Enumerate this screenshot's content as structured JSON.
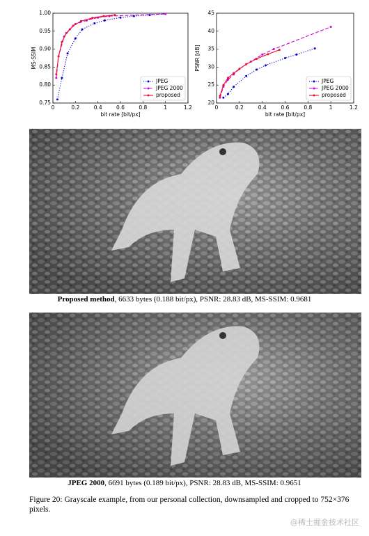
{
  "chart_data": [
    {
      "type": "line",
      "ylabel": "MS-SSIM",
      "xlabel": "bit rate [bit/px]",
      "xlim": [
        0,
        1.2
      ],
      "xticks": [
        0,
        0.2,
        0.4,
        0.6,
        0.8,
        1,
        1.2
      ],
      "ylim": [
        0.75,
        1.0
      ],
      "yticks": [
        0.75,
        {
          "value": 0.8,
          "label": "0.80"
        },
        0.85,
        {
          "value": 0.9,
          "label": "0.90"
        },
        0.95,
        {
          "value": 1.0,
          "label": "1.00"
        }
      ],
      "legend": "lower right",
      "series": [
        {
          "name": "JPEG",
          "color": "#0000cc",
          "linestyle": "dotted",
          "x": [
            0.04,
            0.08,
            0.13,
            0.2,
            0.26,
            0.37,
            0.46,
            0.6,
            0.72,
            0.86,
            1.0
          ],
          "values": [
            0.76,
            0.82,
            0.888,
            0.93,
            0.955,
            0.972,
            0.98,
            0.988,
            0.992,
            0.995,
            0.998
          ]
        },
        {
          "name": "JPEG 2000",
          "color": "#cc00cc",
          "linestyle": "dashed",
          "x": [
            0.03,
            0.05,
            0.1,
            0.15,
            0.2,
            0.3,
            0.4,
            0.5,
            1.0
          ],
          "values": [
            0.82,
            0.88,
            0.935,
            0.955,
            0.97,
            0.98,
            0.988,
            0.992,
            0.998
          ]
        },
        {
          "name": "proposed",
          "color": "#e8102a",
          "linestyle": "solid",
          "x": [
            0.03,
            0.05,
            0.08,
            0.12,
            0.18,
            0.25,
            0.35,
            0.45,
            0.55
          ],
          "values": [
            0.83,
            0.88,
            0.92,
            0.945,
            0.965,
            0.978,
            0.987,
            0.992,
            0.995
          ]
        }
      ]
    },
    {
      "type": "line",
      "ylabel": "PSNR [dB]",
      "xlabel": "bit rate [bit/px]",
      "xlim": [
        0,
        1.2
      ],
      "xticks": [
        0,
        0.2,
        0.4,
        0.6,
        0.8,
        1,
        1.2
      ],
      "ylim": [
        20,
        45
      ],
      "yticks": [
        20,
        25,
        30,
        35,
        40,
        45
      ],
      "legend": "lower right",
      "series": [
        {
          "name": "JPEG",
          "color": "#0000cc",
          "linestyle": "dotted",
          "x": [
            0.06,
            0.1,
            0.15,
            0.26,
            0.35,
            0.43,
            0.6,
            0.7,
            0.86
          ],
          "values": [
            21.5,
            22.5,
            24.5,
            27.5,
            29.3,
            30.5,
            32.5,
            33.5,
            35.2
          ]
        },
        {
          "name": "JPEG 2000",
          "color": "#cc00cc",
          "linestyle": "dashed",
          "x": [
            0.03,
            0.06,
            0.1,
            0.15,
            0.2,
            0.3,
            0.4,
            0.5,
            1.0
          ],
          "values": [
            21.5,
            24.5,
            26.5,
            28,
            29.5,
            31.5,
            33.5,
            35,
            41.2
          ]
        },
        {
          "name": "proposed",
          "color": "#e8102a",
          "linestyle": "solid",
          "x": [
            0.03,
            0.06,
            0.1,
            0.15,
            0.2,
            0.26,
            0.35,
            0.45,
            0.55
          ],
          "values": [
            22,
            25,
            27,
            28.3,
            29.5,
            30.8,
            32.3,
            33.6,
            34.8
          ]
        }
      ]
    }
  ],
  "images": [
    {
      "caption_bold": "Proposed method",
      "caption_text": ", 6633 bytes (0.188 bit/px), PSNR: 28.83 dB, MS-SSIM: 0.9681"
    },
    {
      "caption_bold": "JPEG 2000",
      "caption_text": ", 6691 bytes (0.189 bit/px), PSNR: 28.83 dB, MS-SSIM: 0.9651"
    }
  ],
  "figure_caption": "Figure 20: Grayscale example, from our personal collection, downsampled and cropped to 752×376 pixels.",
  "watermark": "@稀土掘金技术社区"
}
